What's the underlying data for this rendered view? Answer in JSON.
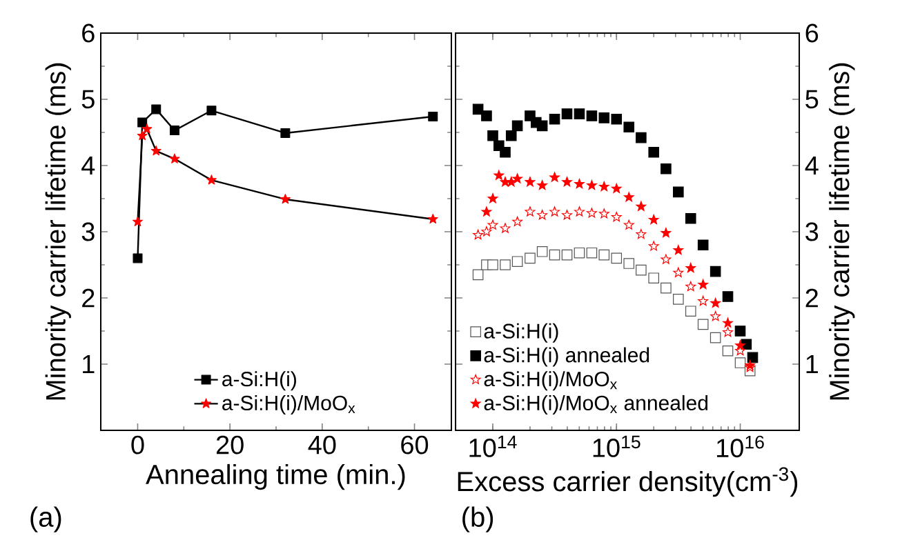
{
  "chart_data": [
    {
      "type": "line",
      "xlabel": "Annealing time (min.)",
      "ylabel": "Minority carrier lifetime (ms)",
      "xlim": [
        -8,
        68
      ],
      "xticks": [
        0,
        20,
        40,
        60
      ],
      "ylim": [
        0,
        6
      ],
      "yticks": [
        1,
        2,
        3,
        4,
        5,
        6
      ],
      "legend": "bottom",
      "annotations": [
        "(a)"
      ],
      "series": [
        {
          "name": "a-Si:H(i)",
          "color": "#000000",
          "marker": "square",
          "x": [
            0,
            1,
            4,
            8,
            16,
            32,
            64
          ],
          "values": [
            2.6,
            4.65,
            4.85,
            4.53,
            4.83,
            4.49,
            4.74
          ]
        },
        {
          "name": "a-Si:H(i)/MoO$_{x}$",
          "color": "#ff0000",
          "marker": "star",
          "x": [
            0,
            1,
            2,
            4,
            8,
            16,
            32,
            64
          ],
          "values": [
            3.15,
            4.45,
            4.55,
            4.22,
            4.1,
            3.78,
            3.49,
            3.19
          ]
        }
      ]
    },
    {
      "type": "scatter",
      "xlabel": "Excess carrier density(cm$^{-3}$)",
      "y2label": "Minority carrier lifetime (ms)",
      "log": "x",
      "xlim": [
        50000000000000.0,
        3e+16
      ],
      "xticks": [
        {
          "value": 100000000000000.0,
          "label": "10$^{14}$"
        },
        {
          "value": 1000000000000000.0,
          "label": "10$^{15}$"
        },
        {
          "value": 1e+16,
          "label": "10$^{16}$"
        }
      ],
      "y2lim": [
        0,
        6
      ],
      "y2ticks": [
        1,
        2,
        3,
        4,
        5,
        6
      ],
      "legend": "bottom left",
      "annotations": [
        "(b)"
      ],
      "series": [
        {
          "name": "a-Si:H(i)",
          "color": "#555555",
          "marker": "square-open",
          "axis": "y2",
          "x": [
            76000000000000.0,
            89000000000000.0,
            100000000000000.0,
            126000000000000.0,
            158000000000000.0,
            200000000000000.0,
            251000000000000.0,
            316000000000000.0,
            398000000000000.0,
            501000000000000.0,
            631000000000000.0,
            794000000000000.0,
            1000000000000000.0,
            1260000000000000.0,
            1580000000000000.0,
            2000000000000000.0,
            2510000000000000.0,
            3160000000000000.0,
            3980000000000000.0,
            5010000000000000.0,
            6310000000000000.0,
            7940000000000000.0,
            1e+16,
            1.2e+16
          ],
          "values": [
            2.35,
            2.5,
            2.5,
            2.5,
            2.55,
            2.6,
            2.7,
            2.65,
            2.65,
            2.68,
            2.68,
            2.65,
            2.6,
            2.52,
            2.42,
            2.3,
            2.15,
            1.98,
            1.8,
            1.6,
            1.4,
            1.2,
            1.02,
            0.9
          ]
        },
        {
          "name": "a-Si:H(i) annealed",
          "color": "#000000",
          "marker": "square",
          "axis": "y2",
          "x": [
            76000000000000.0,
            89000000000000.0,
            100000000000000.0,
            112000000000000.0,
            126000000000000.0,
            141000000000000.0,
            158000000000000.0,
            200000000000000.0,
            224000000000000.0,
            251000000000000.0,
            316000000000000.0,
            398000000000000.0,
            501000000000000.0,
            631000000000000.0,
            794000000000000.0,
            1000000000000000.0,
            1260000000000000.0,
            1580000000000000.0,
            2000000000000000.0,
            2510000000000000.0,
            3160000000000000.0,
            3980000000000000.0,
            5010000000000000.0,
            6310000000000000.0,
            7940000000000000.0,
            1e+16,
            1.12e+16,
            1.26e+16
          ],
          "values": [
            4.85,
            4.75,
            4.45,
            4.3,
            4.2,
            4.45,
            4.6,
            4.75,
            4.65,
            4.6,
            4.7,
            4.78,
            4.78,
            4.75,
            4.72,
            4.7,
            4.58,
            4.42,
            4.2,
            3.95,
            3.6,
            3.2,
            2.8,
            2.4,
            2.02,
            1.5,
            1.3,
            1.1
          ]
        },
        {
          "name": "a-Si:H(i)/MoO$_{x}$",
          "color": "#ff0000",
          "marker": "star-open",
          "axis": "y2",
          "x": [
            76000000000000.0,
            89000000000000.0,
            100000000000000.0,
            126000000000000.0,
            158000000000000.0,
            200000000000000.0,
            251000000000000.0,
            316000000000000.0,
            398000000000000.0,
            501000000000000.0,
            631000000000000.0,
            794000000000000.0,
            1000000000000000.0,
            1260000000000000.0,
            1580000000000000.0,
            2000000000000000.0,
            2510000000000000.0,
            3160000000000000.0,
            3980000000000000.0,
            5010000000000000.0,
            6310000000000000.0,
            7940000000000000.0,
            1e+16,
            1.2e+16
          ],
          "values": [
            2.95,
            3.0,
            3.1,
            3.05,
            3.15,
            3.3,
            3.25,
            3.3,
            3.25,
            3.3,
            3.28,
            3.27,
            3.22,
            3.1,
            2.96,
            2.78,
            2.58,
            2.38,
            2.17,
            1.95,
            1.72,
            1.48,
            1.2,
            0.95
          ]
        },
        {
          "name": "a-Si:H(i)/MoO$_{x}$ annealed",
          "color": "#ff0000",
          "marker": "star",
          "axis": "y2",
          "x": [
            89000000000000.0,
            100000000000000.0,
            112000000000000.0,
            126000000000000.0,
            141000000000000.0,
            158000000000000.0,
            200000000000000.0,
            251000000000000.0,
            316000000000000.0,
            398000000000000.0,
            501000000000000.0,
            631000000000000.0,
            794000000000000.0,
            1000000000000000.0,
            1260000000000000.0,
            1580000000000000.0,
            2000000000000000.0,
            2510000000000000.0,
            3160000000000000.0,
            3980000000000000.0,
            5010000000000000.0,
            6310000000000000.0,
            7940000000000000.0,
            1e+16,
            1.2e+16
          ],
          "values": [
            3.3,
            3.5,
            3.85,
            3.75,
            3.75,
            3.8,
            3.75,
            3.7,
            3.82,
            3.75,
            3.72,
            3.7,
            3.68,
            3.65,
            3.52,
            3.38,
            3.18,
            2.98,
            2.72,
            2.45,
            2.2,
            1.92,
            1.62,
            1.28,
            0.98
          ]
        }
      ]
    }
  ]
}
